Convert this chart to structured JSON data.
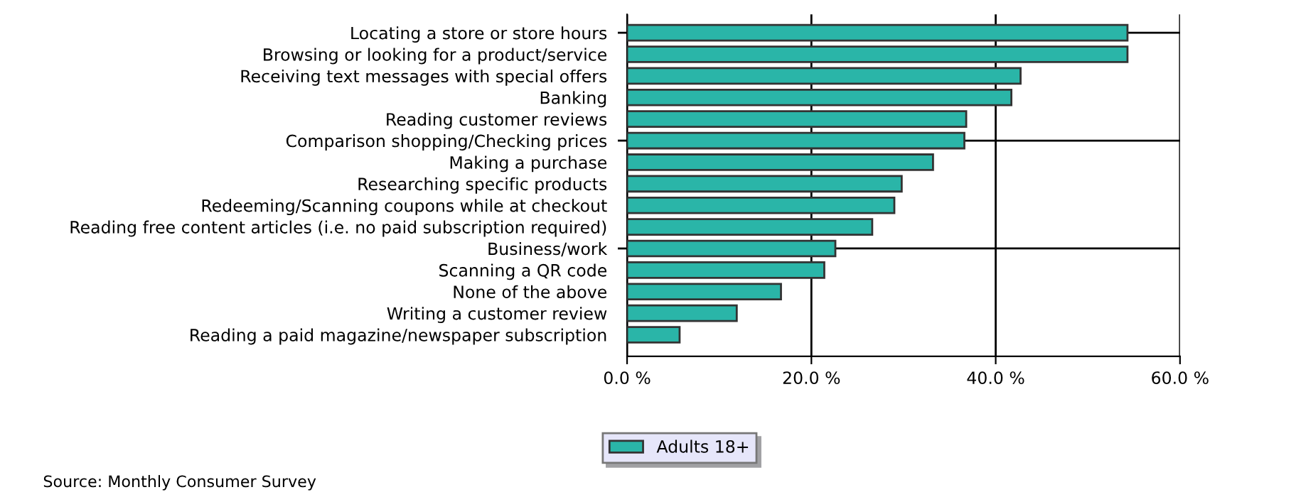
{
  "chart_data": {
    "type": "bar",
    "orientation": "horizontal",
    "categories": [
      "Locating a store or store hours",
      "Browsing or looking for a product/service",
      "Receiving text messages with special offers",
      "Banking",
      "Reading customer reviews",
      "Comparison shopping/Checking prices",
      "Making a purchase",
      "Researching specific products",
      "Redeeming/Scanning coupons while at checkout",
      "Reading free content articles (i.e. no paid subscription required)",
      "Business/work",
      "Scanning a QR code",
      "None of the above",
      "Writing a customer review",
      "Reading a paid magazine/newspaper subscription"
    ],
    "series": [
      {
        "name": "Adults 18+",
        "color": "#2ab5a8",
        "values": [
          54.3,
          54.3,
          42.7,
          41.7,
          36.8,
          36.6,
          33.2,
          29.8,
          29.0,
          26.6,
          22.6,
          21.4,
          16.7,
          11.9,
          5.7
        ]
      }
    ],
    "xlim": [
      0,
      60
    ],
    "xticks": [
      {
        "value": 0,
        "label": "0.0 %"
      },
      {
        "value": 20,
        "label": "20.0 %"
      },
      {
        "value": 40,
        "label": "40.0 %"
      },
      {
        "value": 60,
        "label": "60.0 %"
      }
    ],
    "grid": true,
    "legend": "bottom",
    "annotations": [
      "Source: Monthly Consumer Survey"
    ]
  }
}
